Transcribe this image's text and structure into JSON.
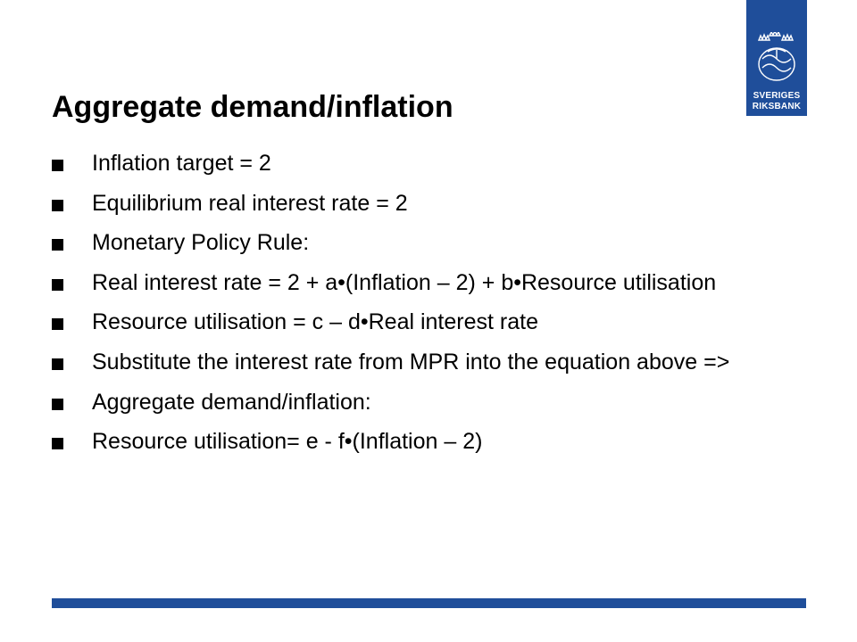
{
  "logo": {
    "line1": "SVERIGES",
    "line2": "RIKSBANK",
    "brand_color": "#1f4e9a",
    "icon": "riksbank-crest-icon"
  },
  "slide": {
    "title": "Aggregate demand/inflation",
    "bullets": [
      "Inflation target = 2",
      "Equilibrium real interest rate = 2",
      "Monetary Policy Rule:",
      "Real interest rate = 2 + a•(Inflation – 2) + b•Resource utilisation",
      "Resource utilisation = c – d•Real interest rate",
      "Substitute the interest rate from MPR into the equation above =>",
      "Aggregate demand/inflation:",
      "Resource utilisation= e - f•(Inflation – 2)"
    ]
  }
}
